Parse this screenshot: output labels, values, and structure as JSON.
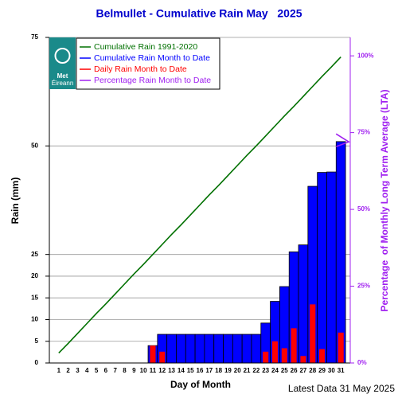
{
  "chart_data": {
    "type": "bar",
    "title": "Belmullet - Cumulative Rain May   2025",
    "xlabel": "Day of Month",
    "ylabel": "Rain (mm)",
    "y2label": "Percentage  of Monthly Long Term Average (LTA)",
    "footer": "Latest Data 31 May 2025",
    "logo": [
      "Met",
      "Éireann"
    ],
    "categories": [
      "1",
      "2",
      "3",
      "4",
      "5",
      "6",
      "7",
      "8",
      "9",
      "10",
      "11",
      "12",
      "13",
      "14",
      "15",
      "16",
      "17",
      "18",
      "19",
      "20",
      "21",
      "22",
      "23",
      "24",
      "25",
      "26",
      "27",
      "28",
      "29",
      "30",
      "31"
    ],
    "series": [
      {
        "name": "Cumulative Rain 1991-2020",
        "color": "#007000",
        "kind": "line",
        "values": [
          2.3,
          4.5,
          6.8,
          9.1,
          11.4,
          13.6,
          15.9,
          18.2,
          20.5,
          22.7,
          25.0,
          27.3,
          29.6,
          31.8,
          34.1,
          36.4,
          38.7,
          40.9,
          43.2,
          45.5,
          47.8,
          50.0,
          52.3,
          54.6,
          56.9,
          59.1,
          61.4,
          63.7,
          66.0,
          68.2,
          70.5
        ]
      },
      {
        "name": "Cumulative Rain Month to Date",
        "color": "#0000ff",
        "kind": "bar",
        "values": [
          0,
          0,
          0,
          0,
          0,
          0,
          0,
          0,
          0,
          0,
          4.0,
          6.6,
          6.6,
          6.6,
          6.6,
          6.6,
          6.6,
          6.6,
          6.6,
          6.6,
          6.6,
          6.6,
          9.2,
          14.2,
          17.6,
          25.6,
          27.2,
          40.7,
          43.9,
          44.0,
          51.0
        ]
      },
      {
        "name": "Daily Rain Month to Date",
        "color": "#ff0000",
        "kind": "narrow-bar",
        "values": [
          0,
          0,
          0,
          0,
          0,
          0,
          0,
          0,
          0,
          0,
          4.0,
          2.6,
          0,
          0,
          0,
          0,
          0,
          0,
          0,
          0,
          0,
          0,
          2.6,
          5.0,
          3.4,
          8.0,
          1.6,
          13.5,
          3.2,
          0.1,
          7.0
        ]
      },
      {
        "name": "Percentage Rain Month to Date",
        "color": "#a020f0",
        "kind": "marker",
        "axis": "y2",
        "values": [
          null,
          null,
          null,
          null,
          null,
          null,
          null,
          null,
          null,
          null,
          null,
          null,
          null,
          null,
          null,
          null,
          null,
          null,
          null,
          null,
          null,
          null,
          null,
          null,
          null,
          null,
          null,
          null,
          null,
          null,
          72
        ]
      }
    ],
    "ylim": [
      0,
      75
    ],
    "yticks": [
      0,
      5,
      10,
      15,
      20,
      25,
      50,
      75
    ],
    "y2lim": [
      0,
      106
    ],
    "y2ticks": [
      {
        "value": 0,
        "label": "0%"
      },
      {
        "value": 25,
        "label": "25%"
      },
      {
        "value": 50,
        "label": "50%"
      },
      {
        "value": 75,
        "label": "75%"
      },
      {
        "value": 100,
        "label": "100%"
      }
    ],
    "grid": true,
    "legend": "upper left"
  }
}
